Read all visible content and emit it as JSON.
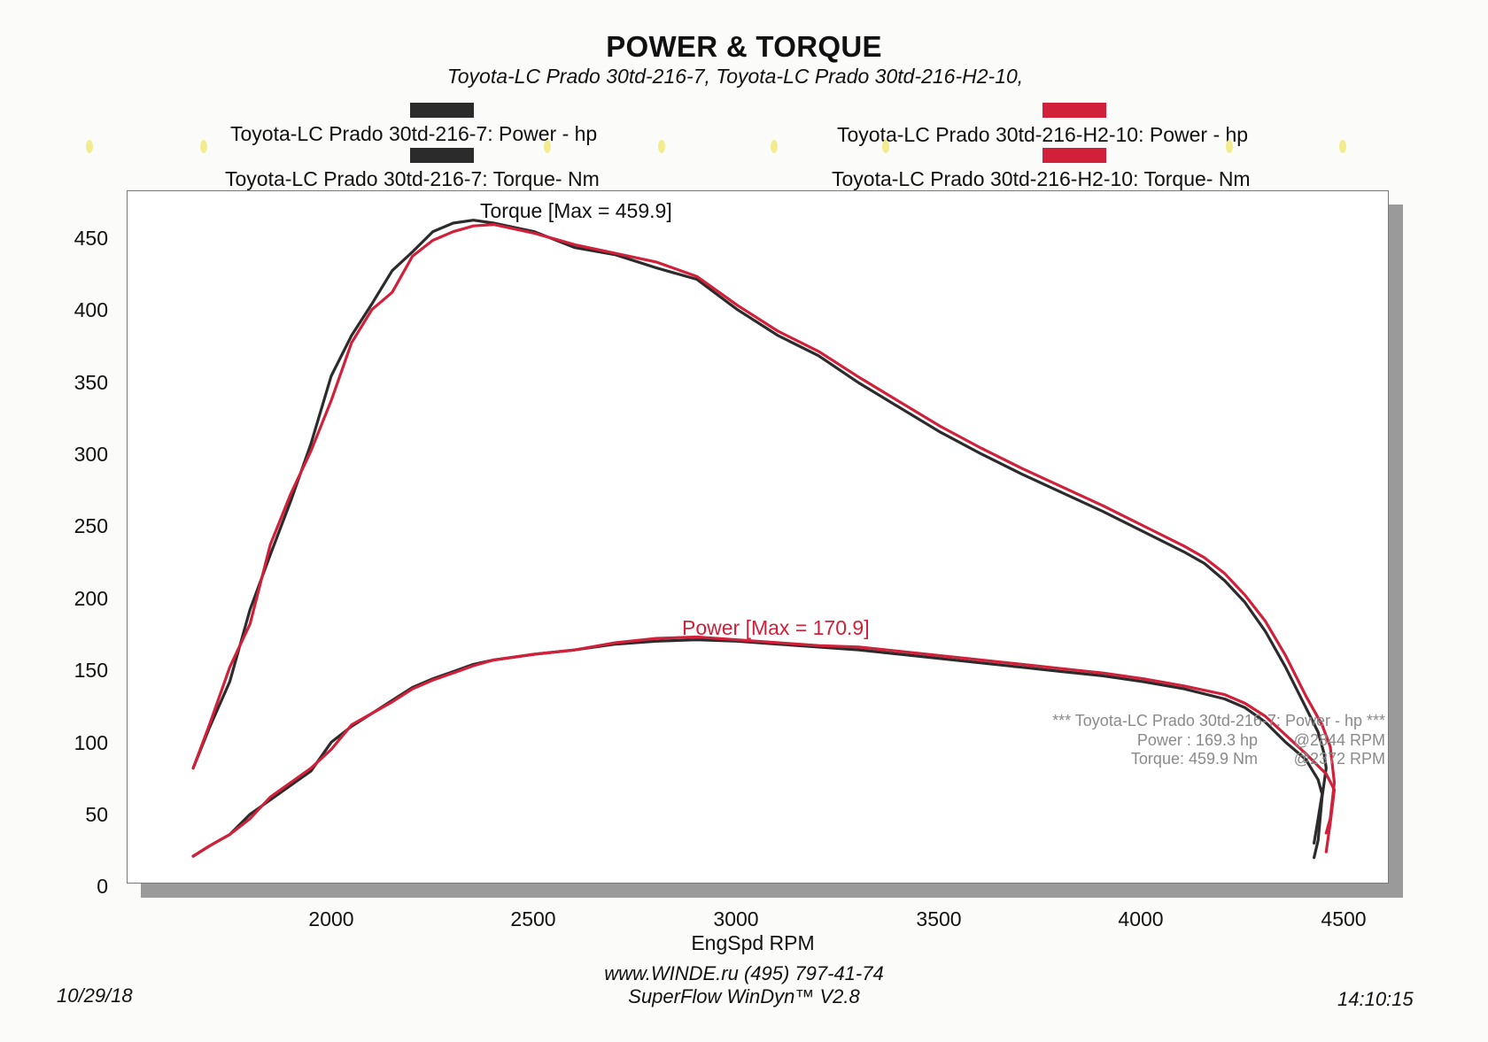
{
  "header": {
    "title": "POWER & TORQUE",
    "subtitle": "Toyota-LC Prado 30td-216-7, Toyota-LC Prado 30td-216-H2-10,"
  },
  "legend": [
    {
      "label": "Toyota-LC Prado 30td-216-7: Power -  hp",
      "color": "#2b2b2b"
    },
    {
      "label": "Toyota-LC Prado 30td-216-H2-10: Power -  hp",
      "color": "#d0203a"
    },
    {
      "label": "Toyota-LC Prado 30td-216-7: Torque-  Nm",
      "color": "#2b2b2b"
    },
    {
      "label": "Toyota-LC Prado 30td-216-H2-10: Torque-  Nm",
      "color": "#d0203a"
    }
  ],
  "annotations": {
    "torque_max": "Torque [Max = 459.9]",
    "power_max": "Power  [Max = 170.9]"
  },
  "info_box": {
    "line1": "*** Toyota-LC Prado 30td-216-7: Power - hp  ***",
    "power_label": "Power :  169.3 hp",
    "power_rpm": "@2844 RPM",
    "torque_label": "Torque:  459.9 Nm",
    "torque_rpm": "@2372 RPM"
  },
  "footer": {
    "date": "10/29/18",
    "website": "www.WINDE.ru  (495) 797-41-74",
    "software": "SuperFlow WinDyn™ V2.8",
    "time": "14:10:15"
  },
  "colors": {
    "series_black": "#2b2b2b",
    "series_red": "#d0203a"
  },
  "chart_data": {
    "type": "line",
    "title": "POWER & TORQUE",
    "xlabel": "EngSpd  RPM",
    "ylabel": "",
    "xlim": [
      1550,
      4530
    ],
    "ylim": [
      0,
      480
    ],
    "x_ticks": [
      2000,
      2500,
      3000,
      3500,
      4000,
      4500
    ],
    "y_ticks": [
      0,
      50,
      100,
      150,
      200,
      250,
      300,
      350,
      400,
      450
    ],
    "grid": false,
    "series": [
      {
        "name": "Toyota-LC Prado 30td-216-7: Torque-  Nm",
        "color": "#2b2b2b",
        "points": [
          [
            1660,
            80
          ],
          [
            1700,
            108
          ],
          [
            1750,
            140
          ],
          [
            1800,
            190
          ],
          [
            1850,
            228
          ],
          [
            1900,
            265
          ],
          [
            1950,
            305
          ],
          [
            2000,
            352
          ],
          [
            2050,
            380
          ],
          [
            2100,
            402
          ],
          [
            2150,
            425
          ],
          [
            2200,
            438
          ],
          [
            2250,
            452
          ],
          [
            2300,
            458
          ],
          [
            2350,
            460
          ],
          [
            2400,
            458
          ],
          [
            2500,
            452
          ],
          [
            2600,
            441
          ],
          [
            2700,
            436
          ],
          [
            2800,
            427
          ],
          [
            2900,
            419
          ],
          [
            3000,
            398
          ],
          [
            3100,
            380
          ],
          [
            3200,
            366
          ],
          [
            3300,
            347
          ],
          [
            3400,
            330
          ],
          [
            3500,
            313
          ],
          [
            3600,
            298
          ],
          [
            3700,
            284
          ],
          [
            3800,
            271
          ],
          [
            3900,
            258
          ],
          [
            4000,
            244
          ],
          [
            4100,
            230
          ],
          [
            4150,
            222
          ],
          [
            4200,
            210
          ],
          [
            4250,
            195
          ],
          [
            4300,
            175
          ],
          [
            4350,
            150
          ],
          [
            4400,
            122
          ],
          [
            4430,
            105
          ],
          [
            4445,
            90
          ],
          [
            4450,
            80
          ],
          [
            4440,
            60
          ],
          [
            4430,
            30
          ],
          [
            4420,
            18
          ]
        ]
      },
      {
        "name": "Toyota-LC Prado 30td-216-H2-10: Torque-  Nm",
        "color": "#d0203a",
        "points": [
          [
            1660,
            80
          ],
          [
            1700,
            110
          ],
          [
            1750,
            150
          ],
          [
            1800,
            180
          ],
          [
            1850,
            235
          ],
          [
            1900,
            270
          ],
          [
            1950,
            300
          ],
          [
            2000,
            335
          ],
          [
            2050,
            375
          ],
          [
            2100,
            398
          ],
          [
            2150,
            410
          ],
          [
            2200,
            435
          ],
          [
            2250,
            446
          ],
          [
            2300,
            452
          ],
          [
            2350,
            456
          ],
          [
            2400,
            457
          ],
          [
            2500,
            451
          ],
          [
            2600,
            443
          ],
          [
            2700,
            437
          ],
          [
            2800,
            431
          ],
          [
            2900,
            421
          ],
          [
            3000,
            401
          ],
          [
            3100,
            383
          ],
          [
            3200,
            369
          ],
          [
            3300,
            351
          ],
          [
            3400,
            334
          ],
          [
            3500,
            317
          ],
          [
            3600,
            302
          ],
          [
            3700,
            288
          ],
          [
            3800,
            275
          ],
          [
            3900,
            262
          ],
          [
            4000,
            248
          ],
          [
            4100,
            234
          ],
          [
            4150,
            226
          ],
          [
            4200,
            215
          ],
          [
            4250,
            200
          ],
          [
            4300,
            182
          ],
          [
            4350,
            158
          ],
          [
            4400,
            130
          ],
          [
            4440,
            110
          ],
          [
            4460,
            95
          ],
          [
            4470,
            70
          ],
          [
            4460,
            45
          ],
          [
            4450,
            35
          ]
        ]
      },
      {
        "name": "Toyota-LC Prado 30td-216-7: Power -  hp",
        "color": "#2b2b2b",
        "points": [
          [
            1660,
            19
          ],
          [
            1700,
            26
          ],
          [
            1750,
            34
          ],
          [
            1800,
            48
          ],
          [
            1850,
            58
          ],
          [
            1900,
            68
          ],
          [
            1950,
            78
          ],
          [
            2000,
            98
          ],
          [
            2050,
            109
          ],
          [
            2100,
            118
          ],
          [
            2150,
            127
          ],
          [
            2200,
            136
          ],
          [
            2250,
            142
          ],
          [
            2300,
            147
          ],
          [
            2350,
            152
          ],
          [
            2400,
            155
          ],
          [
            2500,
            159
          ],
          [
            2600,
            162
          ],
          [
            2700,
            166
          ],
          [
            2800,
            168
          ],
          [
            2900,
            169
          ],
          [
            3000,
            168
          ],
          [
            3100,
            166
          ],
          [
            3200,
            164
          ],
          [
            3300,
            162
          ],
          [
            3400,
            159
          ],
          [
            3500,
            156
          ],
          [
            3600,
            153
          ],
          [
            3700,
            150
          ],
          [
            3800,
            147
          ],
          [
            3900,
            144
          ],
          [
            4000,
            140
          ],
          [
            4100,
            135
          ],
          [
            4200,
            128
          ],
          [
            4250,
            122
          ],
          [
            4300,
            112
          ],
          [
            4350,
            98
          ],
          [
            4400,
            86
          ],
          [
            4430,
            72
          ],
          [
            4440,
            62
          ],
          [
            4430,
            45
          ],
          [
            4420,
            28
          ]
        ]
      },
      {
        "name": "Toyota-LC Prado 30td-216-H2-10: Power -  hp",
        "color": "#d0203a",
        "points": [
          [
            1660,
            19
          ],
          [
            1700,
            26
          ],
          [
            1750,
            34
          ],
          [
            1800,
            45
          ],
          [
            1850,
            60
          ],
          [
            1900,
            70
          ],
          [
            1950,
            80
          ],
          [
            2000,
            93
          ],
          [
            2050,
            110
          ],
          [
            2100,
            118
          ],
          [
            2150,
            126
          ],
          [
            2200,
            135
          ],
          [
            2250,
            141
          ],
          [
            2300,
            146
          ],
          [
            2350,
            151
          ],
          [
            2400,
            155
          ],
          [
            2500,
            159
          ],
          [
            2600,
            162
          ],
          [
            2700,
            167
          ],
          [
            2800,
            170
          ],
          [
            2900,
            171
          ],
          [
            3000,
            169
          ],
          [
            3100,
            167
          ],
          [
            3200,
            165
          ],
          [
            3300,
            164
          ],
          [
            3400,
            161
          ],
          [
            3500,
            158
          ],
          [
            3600,
            155
          ],
          [
            3700,
            152
          ],
          [
            3800,
            149
          ],
          [
            3900,
            146
          ],
          [
            4000,
            142
          ],
          [
            4100,
            137
          ],
          [
            4200,
            131
          ],
          [
            4250,
            125
          ],
          [
            4300,
            116
          ],
          [
            4350,
            103
          ],
          [
            4400,
            90
          ],
          [
            4450,
            76
          ],
          [
            4470,
            65
          ],
          [
            4460,
            42
          ],
          [
            4450,
            22
          ]
        ]
      }
    ]
  }
}
